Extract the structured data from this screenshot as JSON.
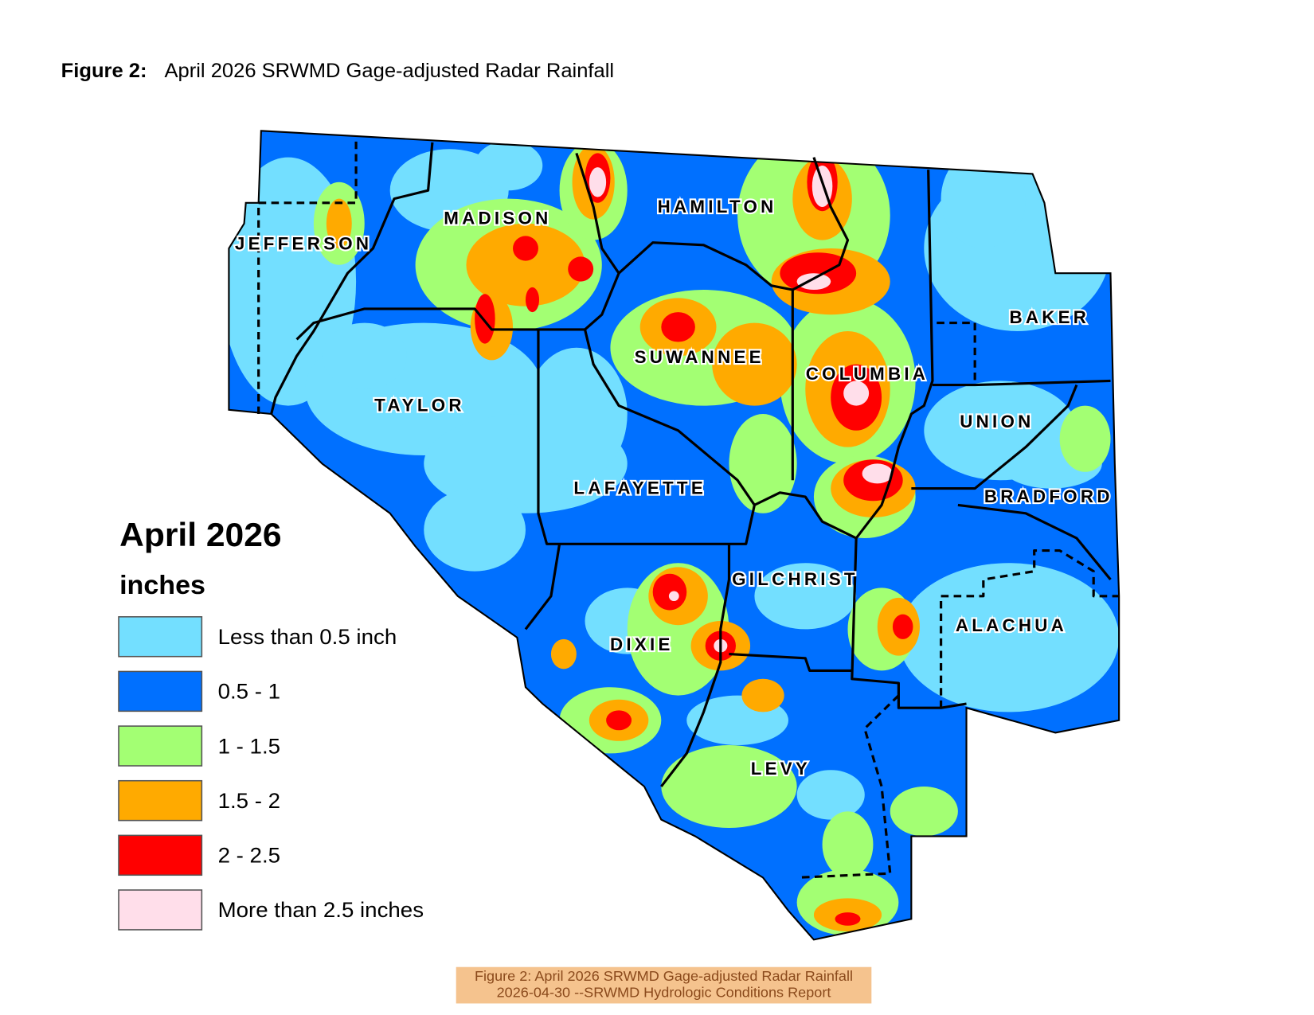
{
  "header": {
    "label": "Figure 2:",
    "title": "April 2026 SRWMD Gage-adjusted Radar Rainfall"
  },
  "counties": [
    "JEFFERSON",
    "MADISON",
    "HAMILTON",
    "BAKER",
    "SUWANNEE",
    "COLUMBIA",
    "TAYLOR",
    "UNION",
    "LAFAYETTE",
    "BRADFORD",
    "GILCHRIST",
    "ALACHUA",
    "DIXIE",
    "LEVY"
  ],
  "legend": {
    "title": "April 2026",
    "units": "inches",
    "items": [
      {
        "label": "Less than 0.5 inch",
        "color": "#73dfff"
      },
      {
        "label": "0.5 - 1",
        "color": "#0070ff"
      },
      {
        "label": "1 - 1.5",
        "color": "#a3ff73"
      },
      {
        "label": "1.5 - 2",
        "color": "#ffaa00"
      },
      {
        "label": "2 - 2.5",
        "color": "#ff0000"
      },
      {
        "label": "More than 2.5 inches",
        "color": "#ffdeea"
      }
    ]
  },
  "footer": {
    "line1": "Figure 2: April 2026 SRWMD Gage-adjusted Radar Rainfall",
    "line2": "2026-04-30 --SRWMD Hydrologic Conditions Report"
  }
}
